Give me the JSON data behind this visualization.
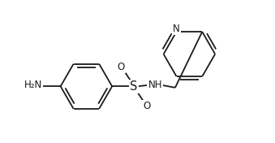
{
  "bg_color": "#ffffff",
  "line_color": "#1a1a1a",
  "lw": 1.3,
  "fs": 8.5,
  "figsize": [
    3.39,
    1.76
  ],
  "dpi": 100,
  "xlim": [
    -0.15,
    3.3
  ],
  "ylim": [
    -1.05,
    1.15
  ],
  "BL": 0.4
}
